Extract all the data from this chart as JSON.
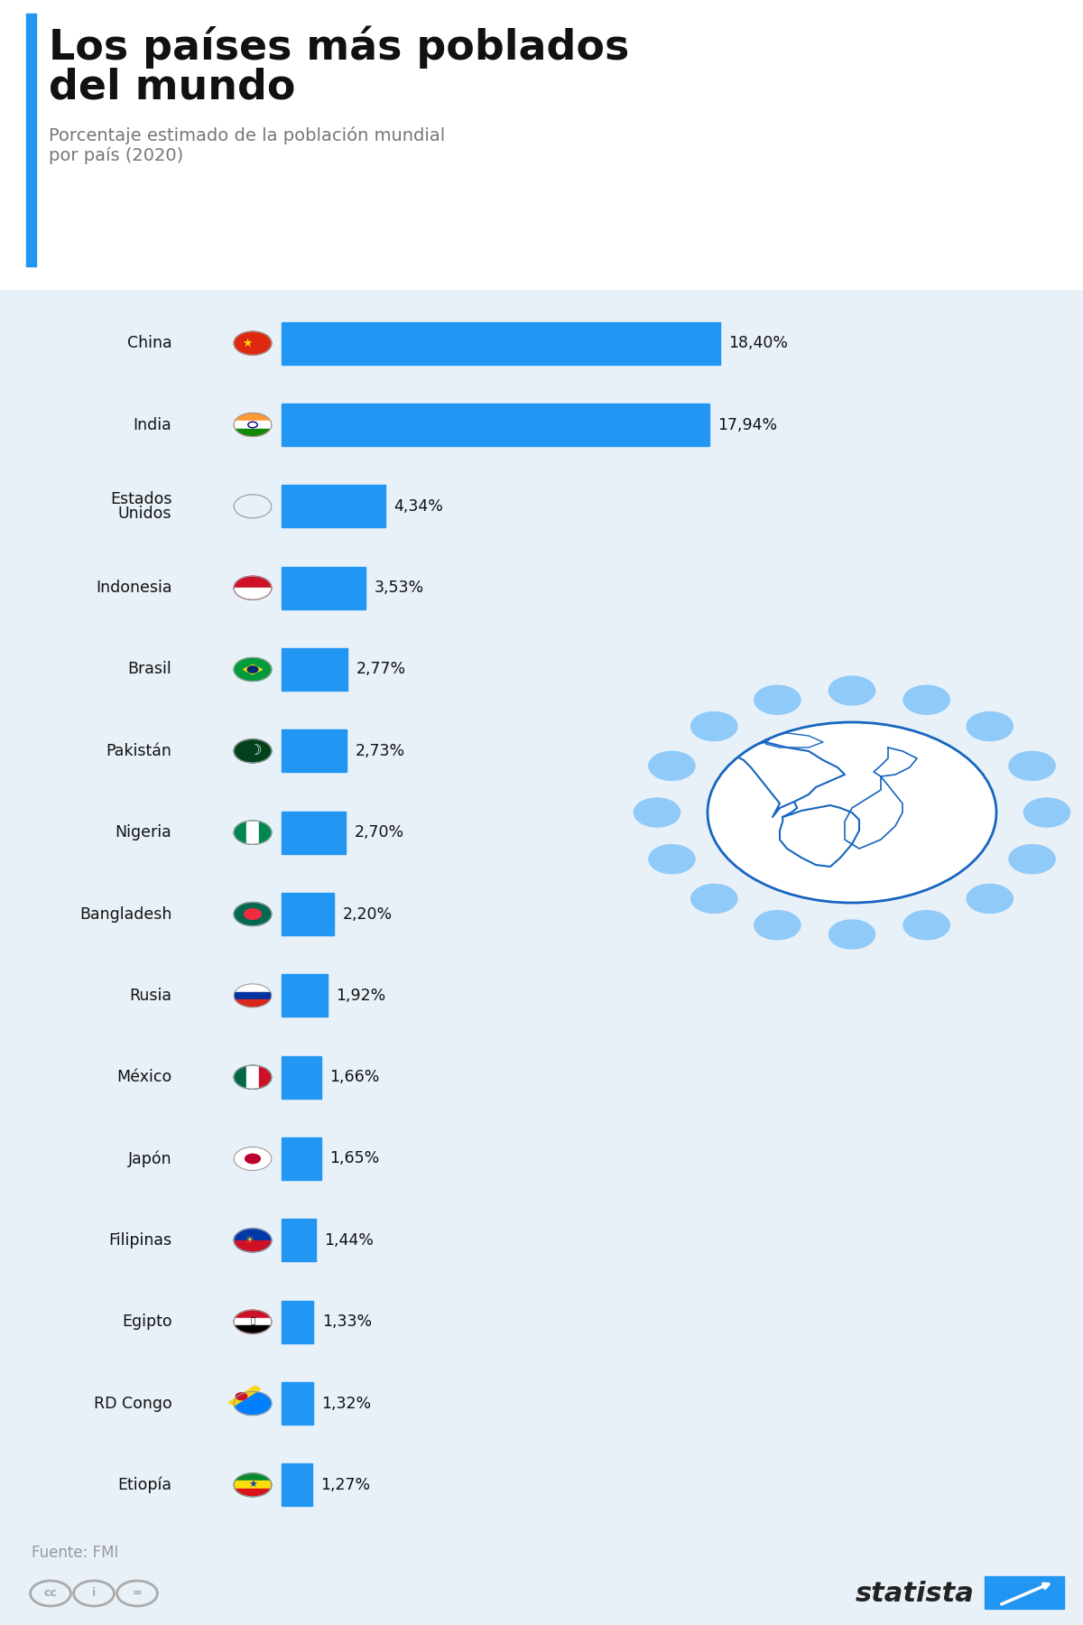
{
  "title_line1": "Los países más poblados",
  "title_line2": "del mundo",
  "subtitle": "Porcentaje estimado de la población mundial\npor país (2020)",
  "source": "Fuente: FMI",
  "background_color": "#e8f0f8",
  "bar_color": "#2196F3",
  "title_color": "#111111",
  "subtitle_color": "#777777",
  "accent_color": "#2196F3",
  "countries": [
    "China",
    "India",
    "Estados\nUnidos",
    "Indonesia",
    "Brasil",
    "Pakistán",
    "Nigeria",
    "Bangladesh",
    "Rusia",
    "México",
    "Japón",
    "Filipinas",
    "Egipto",
    "RD Congo",
    "Etiopía"
  ],
  "values": [
    18.4,
    17.94,
    4.34,
    3.53,
    2.77,
    2.73,
    2.7,
    2.2,
    1.92,
    1.66,
    1.65,
    1.44,
    1.33,
    1.32,
    1.27
  ],
  "labels": [
    "18,40%",
    "17,94%",
    "4,34%",
    "3,53%",
    "2,77%",
    "2,73%",
    "2,70%",
    "2,20%",
    "1,92%",
    "1,66%",
    "1,65%",
    "1,44%",
    "1,33%",
    "1,32%",
    "1,27%"
  ],
  "globe_color": "#90CAF9",
  "globe_bg": "#ffffff",
  "globe_outline_color": "#1565C0",
  "dot_color": "#90CAF9",
  "max_val": 20.0,
  "title_bg": "#ffffff",
  "chart_bg": "#e8f0f8"
}
